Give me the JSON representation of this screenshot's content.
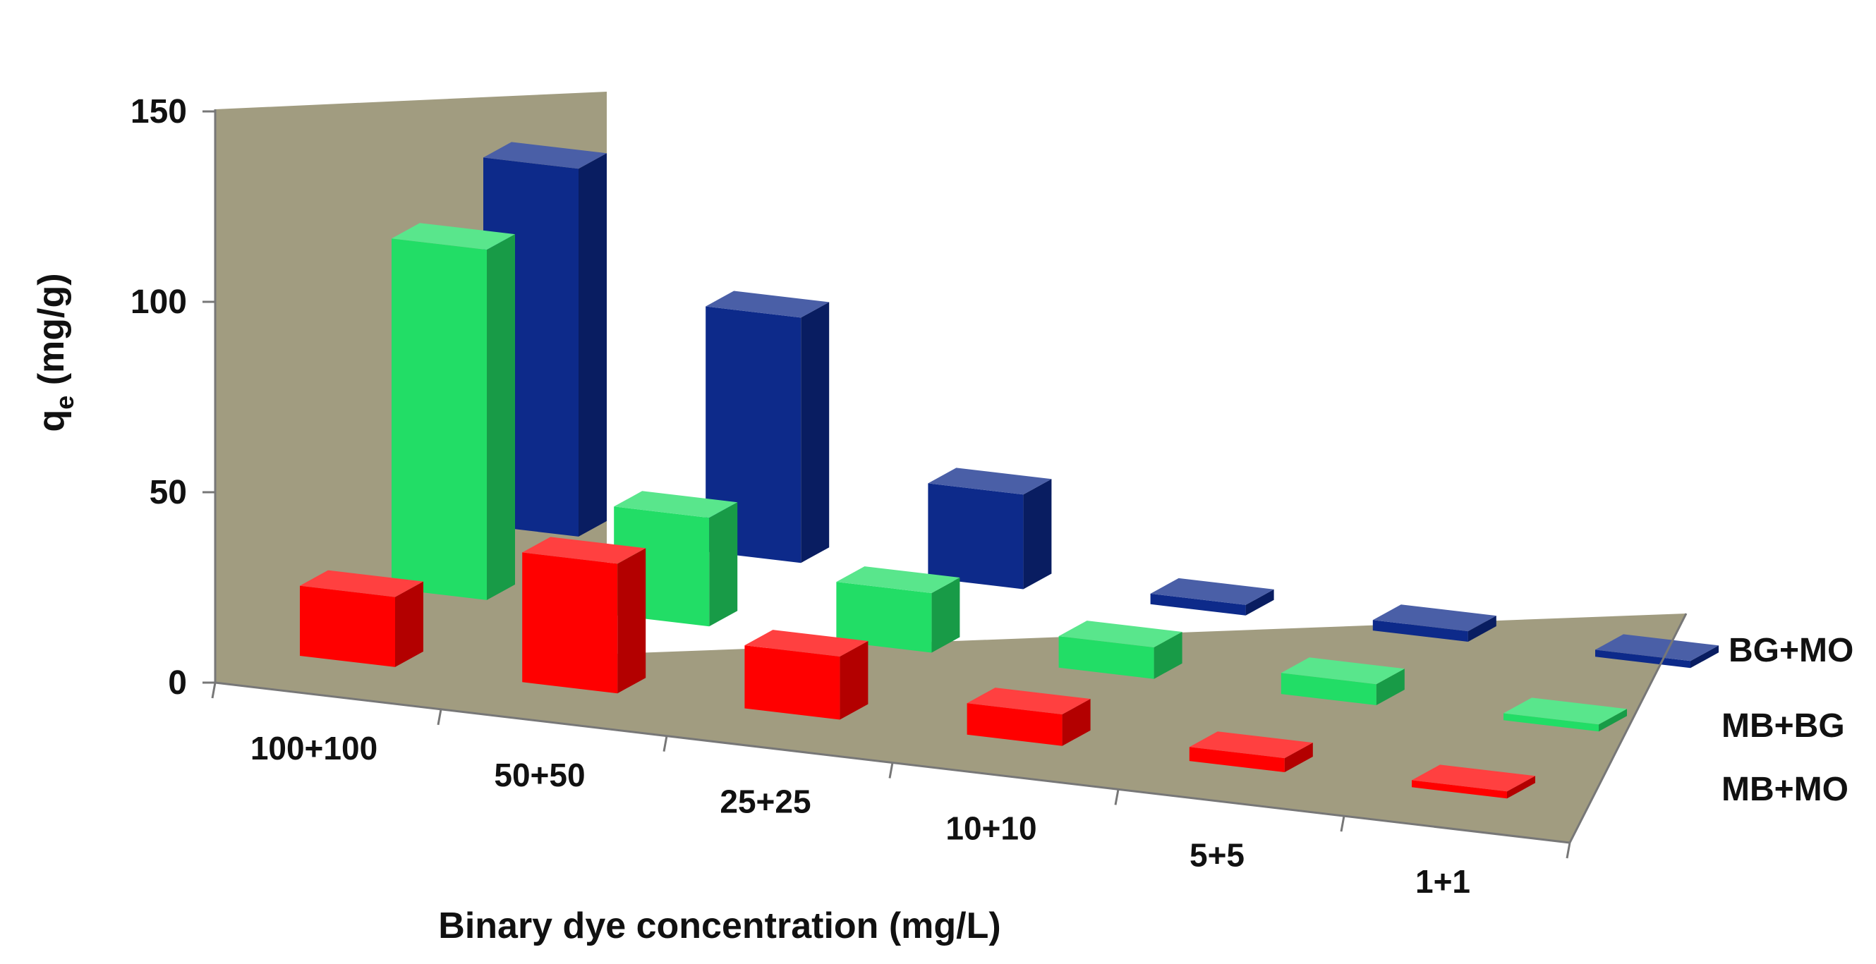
{
  "chart_data": {
    "type": "bar",
    "variant": "3d-column",
    "title": "",
    "xlabel": "Binary dye concentration (mg/L)",
    "ylabel_main": "q",
    "ylabel_sub": "e",
    "ylabel_rest": " (mg/g)",
    "ylim": [
      0,
      150
    ],
    "yticks": [
      "0",
      "50",
      "100",
      "150"
    ],
    "ytick_values": [
      0,
      50,
      100,
      150
    ],
    "categories": [
      "100+100",
      "50+50",
      "25+25",
      "10+10",
      "5+5",
      "1+1"
    ],
    "series": [
      {
        "name": "MB+MO",
        "color": "#ff0000",
        "values": [
          20,
          37,
          18,
          9,
          4,
          2
        ]
      },
      {
        "name": "MB+BG",
        "color": "#22dd66",
        "values": [
          100,
          31,
          17,
          9,
          6,
          2
        ]
      },
      {
        "name": "BG+MO",
        "color": "#0d2a8a",
        "values": [
          105,
          70,
          27,
          3,
          3,
          2
        ]
      }
    ],
    "grid": false,
    "legend": "right"
  }
}
